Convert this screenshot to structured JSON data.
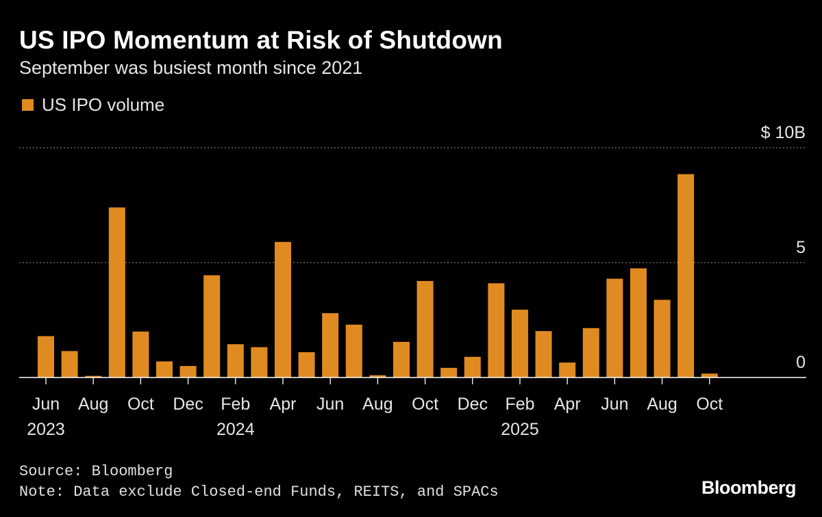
{
  "header": {
    "title": "US IPO Momentum at Risk of Shutdown",
    "subtitle": "September was busiest month since 2021"
  },
  "legend": {
    "label": "US IPO volume"
  },
  "footer": {
    "source": "Source: Bloomberg",
    "note": "Note: Data exclude Closed-end Funds, REITS, and SPACs",
    "brand": "Bloomberg"
  },
  "colors": {
    "bar": "#e08b22",
    "background": "#000000",
    "grid": "#7a7a7a",
    "text": "#e6e6e6"
  },
  "chart_data": {
    "type": "bar",
    "title": "US IPO Momentum at Risk of Shutdown",
    "subtitle": "September was busiest month since 2021",
    "series_name": "US IPO volume",
    "unit": "$ billions",
    "categories": [
      "2023-06",
      "2023-07",
      "2023-08",
      "2023-09",
      "2023-10",
      "2023-11",
      "2023-12",
      "2024-01",
      "2024-02",
      "2024-03",
      "2024-04",
      "2024-05",
      "2024-06",
      "2024-07",
      "2024-08",
      "2024-09",
      "2024-10",
      "2024-11",
      "2024-12",
      "2025-01",
      "2025-02",
      "2025-03",
      "2025-04",
      "2025-05",
      "2025-06",
      "2025-07",
      "2025-08",
      "2025-09",
      "2025-10"
    ],
    "values": [
      1.8,
      1.15,
      0.07,
      7.4,
      2.0,
      0.7,
      0.5,
      4.45,
      1.45,
      1.32,
      5.9,
      1.1,
      2.8,
      2.3,
      0.1,
      1.55,
      4.2,
      0.42,
      0.9,
      4.1,
      2.95,
      2.02,
      0.65,
      2.15,
      4.3,
      4.75,
      3.38,
      8.85,
      0.17
    ],
    "ylim": [
      0,
      10
    ],
    "y_ticks": [
      {
        "value": 10,
        "label": "$ 10B"
      },
      {
        "value": 5,
        "label": "5"
      },
      {
        "value": 0,
        "label": "0"
      }
    ],
    "x_tick_labels": [
      {
        "index": 0,
        "label": "Jun",
        "year": "2023"
      },
      {
        "index": 2,
        "label": "Aug",
        "year": ""
      },
      {
        "index": 4,
        "label": "Oct",
        "year": ""
      },
      {
        "index": 6,
        "label": "Dec",
        "year": ""
      },
      {
        "index": 8,
        "label": "Feb",
        "year": "2024"
      },
      {
        "index": 10,
        "label": "Apr",
        "year": ""
      },
      {
        "index": 12,
        "label": "Jun",
        "year": ""
      },
      {
        "index": 14,
        "label": "Aug",
        "year": ""
      },
      {
        "index": 16,
        "label": "Oct",
        "year": ""
      },
      {
        "index": 18,
        "label": "Dec",
        "year": ""
      },
      {
        "index": 20,
        "label": "Feb",
        "year": "2025"
      },
      {
        "index": 22,
        "label": "Apr",
        "year": ""
      },
      {
        "index": 24,
        "label": "Jun",
        "year": ""
      },
      {
        "index": 26,
        "label": "Aug",
        "year": ""
      },
      {
        "index": 28,
        "label": "Oct",
        "year": ""
      }
    ],
    "grid": "dotted horizontal",
    "legend_position": "top-left"
  }
}
